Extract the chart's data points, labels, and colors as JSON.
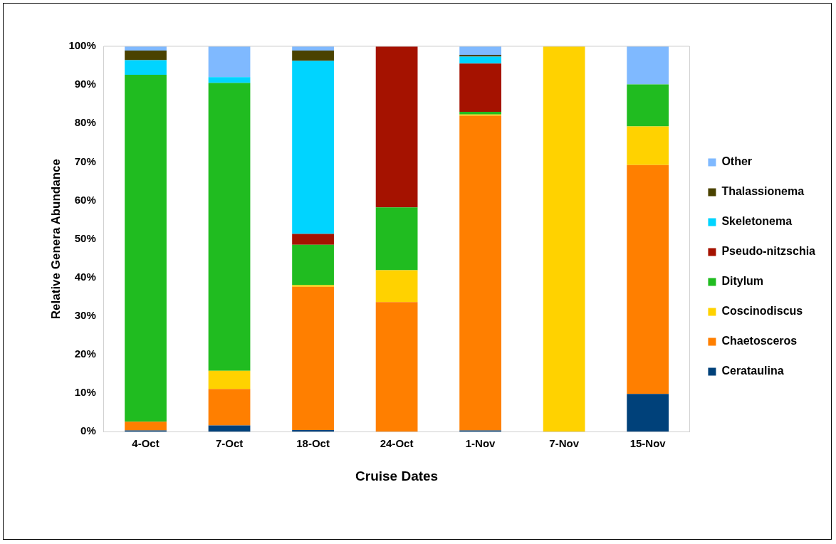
{
  "chart_data": {
    "type": "bar",
    "stacked": true,
    "xlabel": "Cruise Dates",
    "ylabel": "Relative Genera Abundance",
    "categories": [
      "4-Oct",
      "7-Oct",
      "18-Oct",
      "24-Oct",
      "1-Nov",
      "7-Nov",
      "15-Nov"
    ],
    "series": [
      {
        "name": "Cerataulina",
        "color": "#00417a",
        "values": [
          0.3,
          1.6,
          0.4,
          0,
          0.3,
          0,
          9.8
        ]
      },
      {
        "name": "Chaetosceros",
        "color": "#ff7f00",
        "values": [
          2.3,
          9.5,
          37.2,
          33.6,
          81.7,
          0,
          59.4
        ]
      },
      {
        "name": "Coscinodiscus",
        "color": "#ffd200",
        "values": [
          0,
          4.7,
          0.4,
          8.3,
          0.3,
          100,
          10.0
        ]
      },
      {
        "name": "Ditylum",
        "color": "#20bc20",
        "values": [
          90.0,
          74.7,
          10.5,
          16.3,
          0.7,
          0,
          10.9
        ]
      },
      {
        "name": "Pseudo-nitzschia",
        "color": "#a51200",
        "values": [
          0,
          0,
          2.8,
          41.8,
          12.5,
          0,
          0
        ]
      },
      {
        "name": "Skeletonema",
        "color": "#00d4ff",
        "values": [
          3.8,
          1.5,
          44.9,
          0,
          1.8,
          0,
          0
        ]
      },
      {
        "name": "Thalassionema",
        "color": "#4a4200",
        "values": [
          2.5,
          0,
          2.7,
          0,
          0.5,
          0,
          0
        ]
      },
      {
        "name": "Other",
        "color": "#7fb9ff",
        "values": [
          1.1,
          8.0,
          1.1,
          0,
          2.2,
          0,
          9.9
        ]
      }
    ],
    "ylim": [
      0,
      100
    ],
    "yticks": [
      {
        "value": 0,
        "label": "0%"
      },
      {
        "value": 10,
        "label": "10%"
      },
      {
        "value": 20,
        "label": "20%"
      },
      {
        "value": 30,
        "label": "30%"
      },
      {
        "value": 40,
        "label": "40%"
      },
      {
        "value": 50,
        "label": "50%"
      },
      {
        "value": 60,
        "label": "60%"
      },
      {
        "value": 70,
        "label": "70%"
      },
      {
        "value": 80,
        "label": "80%"
      },
      {
        "value": 90,
        "label": "90%"
      },
      {
        "value": 100,
        "label": "100%"
      }
    ],
    "grid": false,
    "legend": "right"
  }
}
